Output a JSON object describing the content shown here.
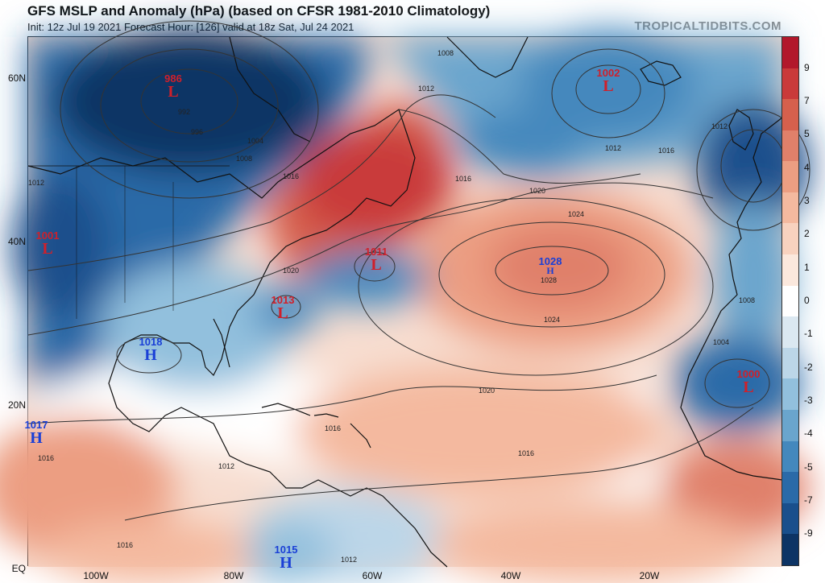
{
  "header": {
    "title": "GFS MSLP and Anomaly (hPa) (based on CFSR 1981-2010 Climatology)",
    "subtitle": "Init: 12z Jul 19 2021   Forecast Hour: [126]   valid at 18z Sat, Jul 24 2021",
    "brand": "TROPICALTIDBITS.COM"
  },
  "axes": {
    "lat_labels": [
      "60N",
      "40N",
      "20N",
      "EQ"
    ],
    "lon_labels": [
      "100W",
      "80W",
      "60W",
      "40W",
      "20W"
    ]
  },
  "colorbar": {
    "ticks": [
      "9",
      "7",
      "5",
      "4",
      "3",
      "2",
      "1",
      "0",
      "-1",
      "-2",
      "-3",
      "-4",
      "-5",
      "-7",
      "-9"
    ],
    "colors": [
      "#b2182b",
      "#c93a3a",
      "#d6604d",
      "#e0806a",
      "#ec9e82",
      "#f4b99f",
      "#f8d2bf",
      "#fbe8dd",
      "#ffffff",
      "#dbe8f1",
      "#bcd6e8",
      "#92c0dd",
      "#6aa5cd",
      "#4488bd",
      "#2a6aa8",
      "#1a4f8c",
      "#0d3465"
    ]
  },
  "systems": [
    {
      "type": "L",
      "value": "986"
    },
    {
      "type": "L",
      "value": "1002"
    },
    {
      "type": "L",
      "value": "1001"
    },
    {
      "type": "L",
      "value": "1011"
    },
    {
      "type": "L",
      "value": "1013"
    },
    {
      "type": "H",
      "value": "1028"
    },
    {
      "type": "H",
      "value": "1018"
    },
    {
      "type": "H",
      "value": "1017"
    },
    {
      "type": "H",
      "value": "1015"
    },
    {
      "type": "L",
      "value": "1000"
    }
  ],
  "isobar_labels": [
    "992",
    "996",
    "1004",
    "1008",
    "1012",
    "1016",
    "1020",
    "1024",
    "1028",
    "1008",
    "1012",
    "1016",
    "1020",
    "1024",
    "1020",
    "1016",
    "1012",
    "1016",
    "1012",
    "1016",
    "1012",
    "1008",
    "1004",
    "1016",
    "1016",
    "1012"
  ]
}
